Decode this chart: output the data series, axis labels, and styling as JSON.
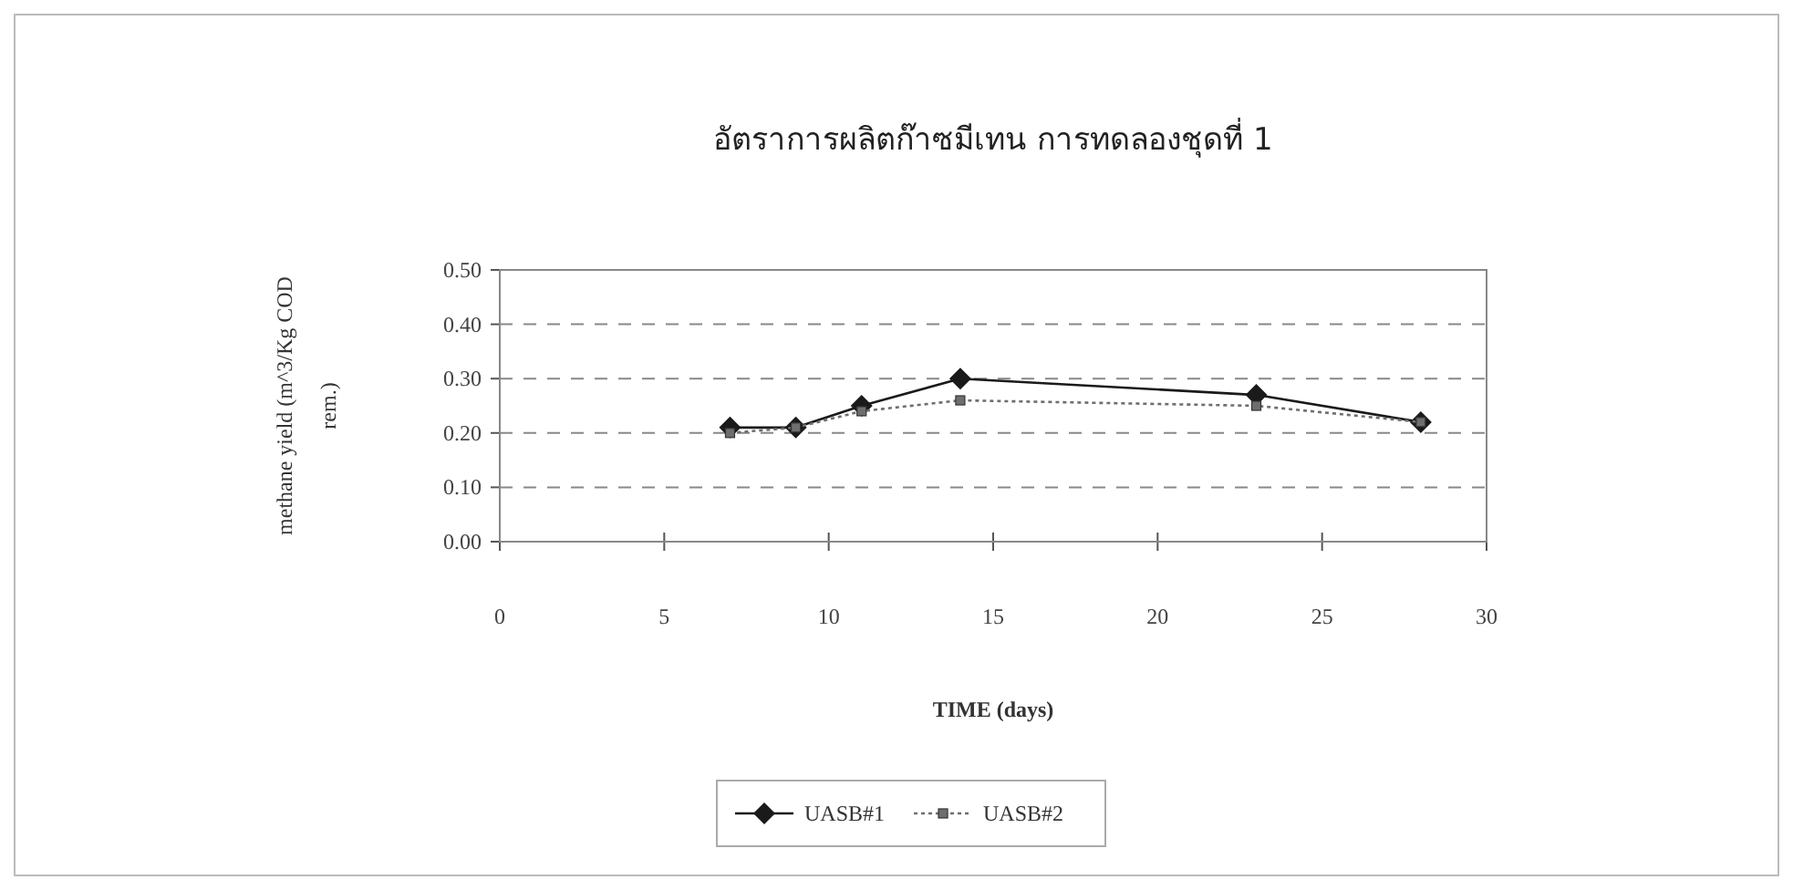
{
  "chart_data": {
    "type": "line",
    "title": "อัตราการผลิตก๊าซมีเทน การทดลองชุดที่ 1",
    "xlabel": "TIME (days)",
    "ylabel": "methane yield (m^3/Kg COD rem.)",
    "xlim": [
      0,
      30
    ],
    "xticks": [
      0,
      5,
      10,
      15,
      20,
      25,
      30
    ],
    "ylim": [
      0,
      0.5
    ],
    "yticks": [
      {
        "value": 0,
        "label": "0.00"
      },
      {
        "value": 0.1,
        "label": "0.10"
      },
      {
        "value": 0.2,
        "label": "0.20"
      },
      {
        "value": 0.3,
        "label": "0.30"
      },
      {
        "value": 0.4,
        "label": "0.40"
      },
      {
        "value": 0.5,
        "label": "0.50"
      }
    ],
    "grid": "y",
    "legend": "bottom",
    "series": [
      {
        "name": "UASB#1",
        "color": "#1a1a1a",
        "marker": "diamond",
        "line_style": "solid",
        "x": [
          7,
          9,
          11,
          14,
          23,
          28
        ],
        "values": [
          0.21,
          0.21,
          0.25,
          0.3,
          0.27,
          0.22
        ]
      },
      {
        "name": "UASB#2",
        "color": "#6e6e6e",
        "marker": "square",
        "line_style": "dotted",
        "x": [
          7,
          9,
          11,
          14,
          23,
          28
        ],
        "values": [
          0.2,
          0.21,
          0.24,
          0.26,
          0.25,
          0.22
        ]
      }
    ]
  }
}
